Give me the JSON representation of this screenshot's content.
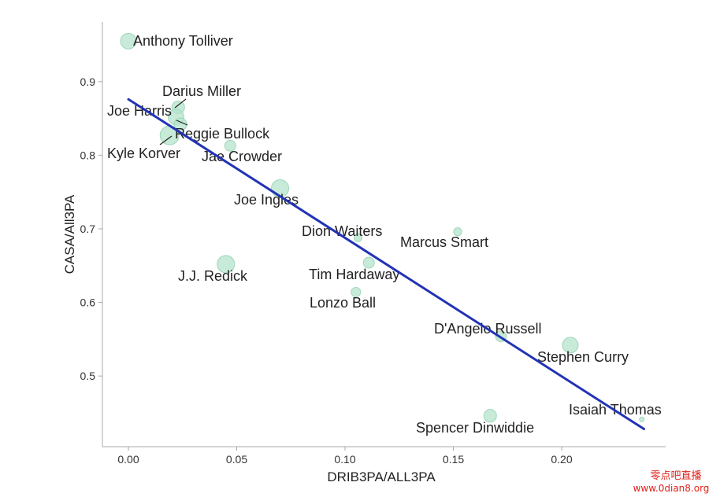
{
  "chart_data": {
    "type": "scatter",
    "xlabel": "DRIB3PA/ALL3PA",
    "ylabel": "CASA/All3PA",
    "xlim": [
      -0.012,
      0.248
    ],
    "ylim": [
      0.404,
      0.981
    ],
    "xticks": [
      0,
      0.05,
      0.1,
      0.15,
      0.2
    ],
    "xtick_labels": [
      "0.00",
      "0.05",
      "0.10",
      "0.15",
      "0.20"
    ],
    "yticks": [
      0.5,
      0.6,
      0.7,
      0.8,
      0.9
    ],
    "ytick_labels": [
      "0.5",
      "0.6",
      "0.7",
      "0.8",
      "0.9"
    ],
    "grid": false,
    "points": [
      {
        "name": "Anthony Tolliver",
        "x": 0.0,
        "y": 0.955,
        "size": 0.83
      },
      {
        "name": "Darius Miller",
        "x": 0.023,
        "y": 0.865,
        "size": 0.67
      },
      {
        "name": "Joe Harris",
        "x": 0.022,
        "y": 0.852,
        "size": 0.83
      },
      {
        "name": "Reggie Bullock",
        "x": 0.024,
        "y": 0.842,
        "size": 0.67
      },
      {
        "name": "Kyle Korver",
        "x": 0.019,
        "y": 0.827,
        "size": 1.0
      },
      {
        "name": "Jae Crowder",
        "x": 0.047,
        "y": 0.813,
        "size": 0.58
      },
      {
        "name": "Joe Ingles",
        "x": 0.07,
        "y": 0.755,
        "size": 0.92
      },
      {
        "name": "Dion Waiters",
        "x": 0.106,
        "y": 0.688,
        "size": 0.42
      },
      {
        "name": "Marcus Smart",
        "x": 0.152,
        "y": 0.696,
        "size": 0.42
      },
      {
        "name": "J.J. Redick",
        "x": 0.045,
        "y": 0.652,
        "size": 0.92
      },
      {
        "name": "Tim Hardaway",
        "x": 0.111,
        "y": 0.654,
        "size": 0.58
      },
      {
        "name": "Lonzo Ball",
        "x": 0.105,
        "y": 0.614,
        "size": 0.5
      },
      {
        "name": "D'Angelo Russell",
        "x": 0.172,
        "y": 0.554,
        "size": 0.58
      },
      {
        "name": "Stephen Curry",
        "x": 0.204,
        "y": 0.542,
        "size": 0.83
      },
      {
        "name": "Isaiah Thomas",
        "x": 0.237,
        "y": 0.441,
        "size": 0.25
      },
      {
        "name": "Spencer Dinwiddie",
        "x": 0.167,
        "y": 0.446,
        "size": 0.67
      }
    ],
    "fit_line": {
      "x": [
        0.0,
        0.238
      ],
      "y": [
        0.876,
        0.428
      ]
    },
    "colors": {
      "points": "#b5e3cb",
      "point_edge": "#9dd7b9",
      "fit_line": "#2233b5",
      "axes": "#a9a9a9"
    }
  },
  "watermark": {
    "line1": "零点吧直播",
    "line2": "www.0dian8.org",
    "color": "#e3201b"
  }
}
